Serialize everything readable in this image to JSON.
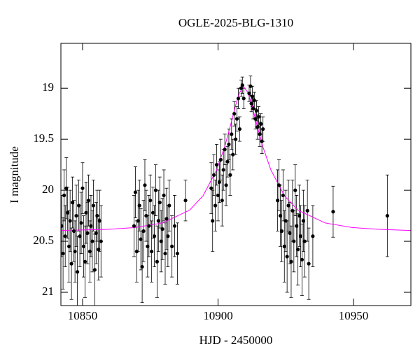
{
  "chart_data": {
    "type": "scatter",
    "title": "OGLE-2025-BLG-1310",
    "xlabel": "HJD - 2450000",
    "ylabel": "I magnitude",
    "xlim": [
      10842.0,
      10971.2
    ],
    "ylim": [
      21.13,
      18.56
    ],
    "xticks": [
      10850,
      10900,
      10950
    ],
    "yticks": [
      19,
      19.5,
      20,
      20.5,
      21
    ],
    "series": [
      {
        "color": "#000000",
        "x": [
          10842.3,
          10842.8,
          10843.2,
          10843.6,
          10844.0,
          10844.5,
          10845.0,
          10845.4,
          10845.9,
          10846.3,
          10846.8,
          10847.2,
          10847.7,
          10848.1,
          10848.6,
          10849.0,
          10849.5,
          10850.0,
          10850.4,
          10850.9,
          10851.3,
          10851.8,
          10852.2,
          10852.7,
          10853.1,
          10853.6,
          10854.0,
          10854.5,
          10855.0,
          10855.4,
          10855.9,
          10856.3,
          10856.8,
          10869.0,
          10869.5,
          10870.0,
          10870.5,
          10871.0,
          10871.5,
          10872.0,
          10872.5,
          10873.0,
          10873.5,
          10874.0,
          10874.5,
          10875.0,
          10875.5,
          10876.0,
          10876.5,
          10877.0,
          10877.5,
          10878.0,
          10878.5,
          10879.0,
          10879.5,
          10880.0,
          10880.5,
          10881.0,
          10881.5,
          10882.0,
          10883.0,
          10884.0,
          10885.0,
          10888.0,
          10897.5,
          10898.0,
          10898.5,
          10899.0,
          10899.5,
          10900.0,
          10900.5,
          10901.0,
          10901.5,
          10902.0,
          10902.5,
          10903.0,
          10903.5,
          10904.0,
          10904.5,
          10905.0,
          10905.5,
          10906.0,
          10906.5,
          10907.0,
          10907.5,
          10908.0,
          10908.5,
          10909.0,
          10909.5,
          10911.5,
          10912.0,
          10912.3,
          10912.7,
          10913.0,
          10913.4,
          10913.8,
          10914.2,
          10914.6,
          10915.0,
          10915.4,
          10915.8,
          10916.2,
          10916.6,
          10922.0,
          10922.5,
          10923.0,
          10923.5,
          10924.0,
          10924.5,
          10925.0,
          10925.5,
          10926.0,
          10926.5,
          10927.0,
          10927.5,
          10928.0,
          10928.5,
          10929.0,
          10929.5,
          10930.0,
          10930.5,
          10931.0,
          10931.5,
          10932.0,
          10933.0,
          10933.5,
          10935.0,
          10942.5,
          10962.5
        ],
        "values": [
          20.35,
          20.62,
          20.05,
          20.45,
          19.98,
          20.22,
          20.55,
          20.3,
          20.72,
          20.12,
          20.4,
          20.6,
          20.25,
          20.8,
          20.15,
          20.45,
          20.32,
          19.98,
          20.55,
          20.7,
          20.22,
          20.42,
          20.1,
          20.6,
          20.35,
          20.5,
          20.15,
          20.78,
          20.42,
          20.25,
          20.58,
          20.3,
          20.5,
          20.35,
          20.02,
          20.6,
          20.3,
          20.15,
          20.48,
          20.75,
          20.4,
          19.95,
          20.25,
          20.55,
          20.35,
          20.1,
          20.6,
          20.22,
          20.45,
          20.0,
          20.7,
          20.3,
          20.12,
          20.5,
          20.38,
          20.05,
          20.62,
          20.28,
          20.45,
          20.15,
          20.55,
          20.35,
          20.62,
          20.1,
          19.98,
          20.3,
          19.85,
          20.15,
          19.75,
          20.05,
          19.92,
          19.7,
          20.1,
          19.8,
          19.6,
          19.95,
          19.72,
          19.55,
          19.85,
          19.45,
          19.65,
          19.25,
          19.5,
          19.3,
          19.1,
          19.4,
          19.0,
          18.97,
          19.1,
          19.05,
          18.98,
          19.15,
          19.08,
          19.2,
          19.12,
          19.3,
          19.22,
          19.38,
          19.28,
          19.45,
          19.35,
          19.52,
          19.4,
          20.1,
          19.95,
          20.25,
          20.4,
          20.05,
          20.55,
          20.3,
          20.65,
          20.15,
          20.42,
          20.7,
          20.2,
          20.5,
          20.0,
          20.35,
          20.58,
          20.25,
          20.45,
          20.68,
          20.3,
          20.5,
          20.2,
          20.72,
          20.45,
          20.21,
          20.25
        ],
        "errors": [
          0.3,
          0.35,
          0.25,
          0.3,
          0.3,
          0.25,
          0.35,
          0.3,
          0.35,
          0.25,
          0.3,
          0.3,
          0.3,
          0.35,
          0.25,
          0.3,
          0.3,
          0.25,
          0.3,
          0.35,
          0.3,
          0.3,
          0.25,
          0.3,
          0.3,
          0.3,
          0.25,
          0.35,
          0.3,
          0.25,
          0.3,
          0.3,
          0.35,
          0.3,
          0.25,
          0.3,
          0.3,
          0.25,
          0.3,
          0.35,
          0.3,
          0.25,
          0.25,
          0.3,
          0.3,
          0.25,
          0.3,
          0.25,
          0.3,
          0.25,
          0.35,
          0.3,
          0.25,
          0.3,
          0.3,
          0.25,
          0.3,
          0.3,
          0.3,
          0.25,
          0.3,
          0.3,
          0.3,
          0.2,
          0.25,
          0.3,
          0.2,
          0.25,
          0.2,
          0.25,
          0.2,
          0.2,
          0.25,
          0.2,
          0.15,
          0.2,
          0.15,
          0.15,
          0.2,
          0.15,
          0.15,
          0.12,
          0.15,
          0.12,
          0.1,
          0.12,
          0.08,
          0.08,
          0.1,
          0.08,
          0.1,
          0.08,
          0.1,
          0.1,
          0.08,
          0.1,
          0.1,
          0.12,
          0.1,
          0.12,
          0.1,
          0.12,
          0.12,
          0.3,
          0.25,
          0.3,
          0.3,
          0.25,
          0.35,
          0.3,
          0.35,
          0.25,
          0.3,
          0.35,
          0.3,
          0.3,
          0.25,
          0.3,
          0.35,
          0.3,
          0.3,
          0.35,
          0.3,
          0.35,
          0.3,
          0.35,
          0.3,
          0.25,
          0.4
        ]
      }
    ],
    "model": {
      "color": "#ff00ff",
      "x": [
        10842.0,
        10859.5,
        10869.5,
        10879.5,
        10889.5,
        10894.5,
        10899.5,
        10902.5,
        10904.5,
        10906.5,
        10908.0,
        10909.5,
        10911.0,
        10912.5,
        10914.5,
        10916.5,
        10919.5,
        10924.5,
        10929.5,
        10939.5,
        10949.5,
        10959.5,
        10971.2
      ],
      "values": [
        20.394,
        20.383,
        20.365,
        20.32,
        20.195,
        20.053,
        19.8,
        19.57,
        19.375,
        19.167,
        19.04,
        18.987,
        19.04,
        19.167,
        19.375,
        19.57,
        19.8,
        20.053,
        20.195,
        20.32,
        20.365,
        20.383,
        20.394
      ]
    }
  }
}
